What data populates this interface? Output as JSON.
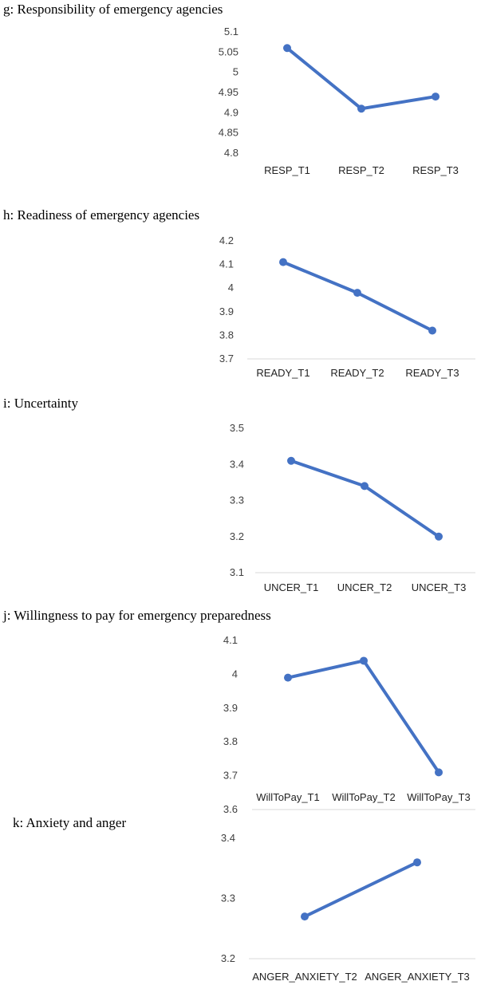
{
  "colors": {
    "series": "#4472c4",
    "axis": "#d9d9d9"
  },
  "chart_data": [
    {
      "type": "line",
      "title": "g: Responsibility of emergency agencies",
      "categories": [
        "RESP_T1",
        "RESP_T2",
        "RESP_T3"
      ],
      "values": [
        5.06,
        4.91,
        4.94
      ],
      "yticks": [
        "5.1",
        "5.05",
        "5",
        "4.95",
        "4.9",
        "4.85",
        "4.8"
      ],
      "ylim": [
        4.8,
        5.1
      ],
      "xlabel": "",
      "ylabel": "",
      "grid": false,
      "legend": "none"
    },
    {
      "type": "line",
      "title": "h: Readiness of emergency agencies",
      "categories": [
        "READY_T1",
        "READY_T2",
        "READY_T3"
      ],
      "values": [
        4.11,
        3.98,
        3.82
      ],
      "yticks": [
        "4.2",
        "4.1",
        "4",
        "3.9",
        "3.8",
        "3.7"
      ],
      "ylim": [
        3.7,
        4.2
      ],
      "xlabel": "",
      "ylabel": "",
      "grid": false,
      "legend": "none"
    },
    {
      "type": "line",
      "title": "i: Uncertainty",
      "categories": [
        "UNCER_T1",
        "UNCER_T2",
        "UNCER_T3"
      ],
      "values": [
        3.41,
        3.34,
        3.2
      ],
      "yticks": [
        "3.5",
        "3.4",
        "3.3",
        "3.2",
        "3.1"
      ],
      "ylim": [
        3.1,
        3.5
      ],
      "xlabel": "",
      "ylabel": "",
      "grid": false,
      "legend": "none"
    },
    {
      "type": "line",
      "title": "j: Willingness to pay for emergency preparedness",
      "categories": [
        "WillToPay_T1",
        "WillToPay_T2",
        "WillToPay_T3"
      ],
      "values": [
        3.99,
        4.04,
        3.71
      ],
      "yticks": [
        "4.1",
        "4",
        "3.9",
        "3.8",
        "3.7",
        "3.6"
      ],
      "ylim": [
        3.6,
        4.1
      ],
      "xlabel": "",
      "ylabel": "",
      "grid": false,
      "legend": "none"
    },
    {
      "type": "line",
      "title": "k: Anxiety and anger",
      "categories": [
        "ANGER_ANXIETY_T2",
        "ANGER_ANXIETY_T3"
      ],
      "values": [
        3.27,
        3.36
      ],
      "yticks": [
        "3.4",
        "3.3",
        "3.2"
      ],
      "ylim": [
        3.2,
        3.4
      ],
      "xlabel": "",
      "ylabel": "",
      "grid": false,
      "legend": "none"
    }
  ]
}
